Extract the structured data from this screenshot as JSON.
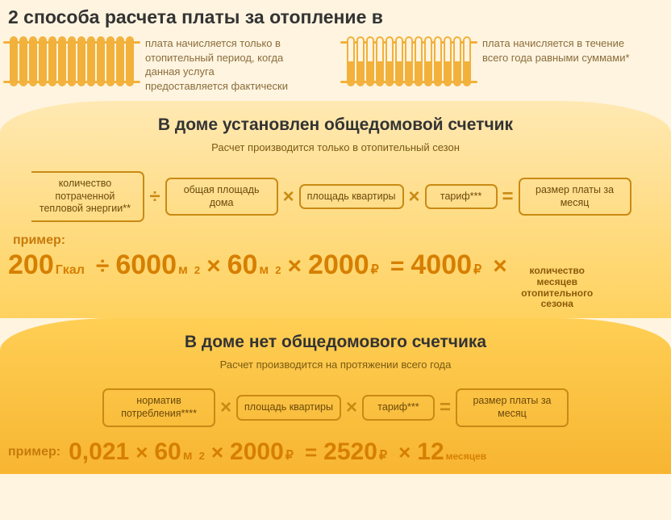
{
  "colors": {
    "page_bg": "#fff4e0",
    "section1_bg_top": "#ffe9b3",
    "section1_bg_bottom": "#ffd25e",
    "section2_bg_top": "#ffcf55",
    "section2_bg_bottom": "#f7b531",
    "box_border": "#c98a14",
    "box_text": "#6b4a0a",
    "operator": "#c98a14",
    "title_text": "#333333",
    "subtitle_text": "#7a5a12",
    "method_text": "#8a6d3b",
    "example_number": "#d67f00",
    "example_label": "#c87a0a",
    "radiator_stroke": "#f2b13b",
    "radiator_fill": "#f2b13b"
  },
  "typography": {
    "main_title_fontsize": 23,
    "section_title_fontsize": 21,
    "section_sub_fontsize": 13,
    "method_text_fontsize": 13,
    "formula_box_fontsize": 12.5,
    "operator_fontsize": 24,
    "example_big_fontsize": 34,
    "example_unit_fontsize": 16,
    "example_operator_fontsize": 30,
    "side_note_fontsize": 12
  },
  "title": "2 способа расчета платы за отопление в",
  "method1": {
    "text": "плата начисляется только в отопительный период, когда данная услуга предоставляется фактически",
    "radiator_fill_pct": 100,
    "radiator_columns": 13
  },
  "method2": {
    "text": "плата начисляется в течение всего года равными суммами*",
    "radiator_fill_pct": 50,
    "radiator_columns": 13
  },
  "section_with_meter": {
    "title": "В доме установлен общедомовой счетчик",
    "subtitle": "Расчет производится только в отопительный сезон",
    "formula": {
      "terms": [
        "количество потраченной тепловой энергии**",
        "общая площадь дома",
        "площадь квартиры",
        "тариф***",
        "размер платы за месяц"
      ],
      "operators": [
        "÷",
        "×",
        "×",
        "="
      ]
    },
    "example_label": "пример:",
    "example": {
      "terms": [
        {
          "value": "200",
          "unit": "Гкал"
        },
        {
          "value": "6000",
          "unit": "м",
          "sup": "2"
        },
        {
          "value": "60",
          "unit": "м",
          "sup": "2"
        },
        {
          "value": "2000",
          "unit": "₽"
        },
        {
          "value": "4000",
          "unit": "₽"
        }
      ],
      "operators": [
        "÷",
        "×",
        "×",
        "="
      ],
      "trailing_operator": "×",
      "trailing_note": "количество месяцев отопительного сезона"
    }
  },
  "section_no_meter": {
    "title": "В доме нет общедомового счетчика",
    "subtitle": "Расчет производится на протяжении всего года",
    "formula": {
      "terms": [
        "норматив потребления****",
        "площадь квартиры",
        "тариф***",
        "размер платы за месяц"
      ],
      "operators": [
        "×",
        "×",
        "="
      ]
    },
    "example_label": "пример:",
    "example": {
      "terms": [
        {
          "value": "0,021",
          "unit": ""
        },
        {
          "value": "60",
          "unit": "м",
          "sup": "2"
        },
        {
          "value": "2000",
          "unit": "₽"
        },
        {
          "value": "2520",
          "unit": "₽"
        },
        {
          "value": "12",
          "unit": "месяцев",
          "small_unit": true
        }
      ],
      "operators": [
        "×",
        "×",
        "=",
        "×"
      ]
    }
  }
}
